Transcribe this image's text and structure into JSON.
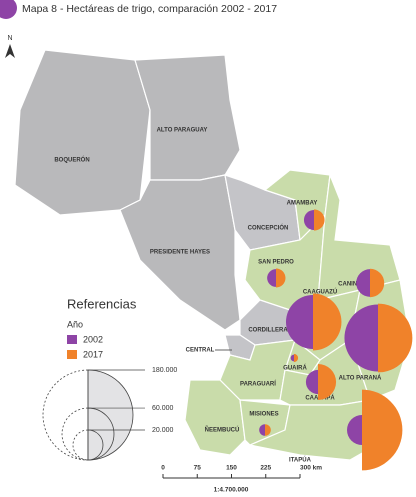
{
  "title": "Mapa 8 - Hectáreas de trigo, comparación 2002 - 2017",
  "north": "N",
  "legend": {
    "title": "Referencias",
    "subtitle": "Año",
    "series": [
      {
        "name": "2002",
        "color": "#8e44a6"
      },
      {
        "name": "2017",
        "color": "#f0822a"
      }
    ],
    "sizes": [
      {
        "value": 180000,
        "label": "180.000"
      },
      {
        "value": 60000,
        "label": "60.000"
      },
      {
        "value": 20000,
        "label": "20.000"
      }
    ]
  },
  "departments": [
    {
      "name": "BOQUERÓN"
    },
    {
      "name": "ALTO PARAGUAY"
    },
    {
      "name": "PRESIDENTE HAYES"
    },
    {
      "name": "CONCEPCIÓN"
    },
    {
      "name": "AMAMBAY",
      "values": [
        9000,
        10000
      ]
    },
    {
      "name": "SAN PEDRO",
      "values": [
        7000,
        8000
      ]
    },
    {
      "name": "CANINDEYÚ",
      "values": [
        17000,
        18000
      ]
    },
    {
      "name": "CORDILLERA"
    },
    {
      "name": "CENTRAL"
    },
    {
      "name": "CAAGUAZÚ",
      "values": [
        65000,
        72000
      ]
    },
    {
      "name": "ALTO PARANÁ",
      "values": [
        100000,
        105000
      ]
    },
    {
      "name": "GUAIRÁ",
      "values": [
        1000,
        1500
      ]
    },
    {
      "name": "PARAGUARÍ"
    },
    {
      "name": "CAAZAPÁ",
      "values": [
        13000,
        29000
      ]
    },
    {
      "name": "ÑEEMBUCÚ"
    },
    {
      "name": "MISIONES",
      "values": [
        3000,
        3000
      ]
    },
    {
      "name": "ITAPÚA",
      "values": [
        20000,
        145000
      ]
    }
  ],
  "scale": {
    "ticks": [
      0,
      75,
      150,
      225,
      {
        "value": 300,
        "label": "300 km"
      }
    ],
    "ratio": "1:4.700.000"
  }
}
